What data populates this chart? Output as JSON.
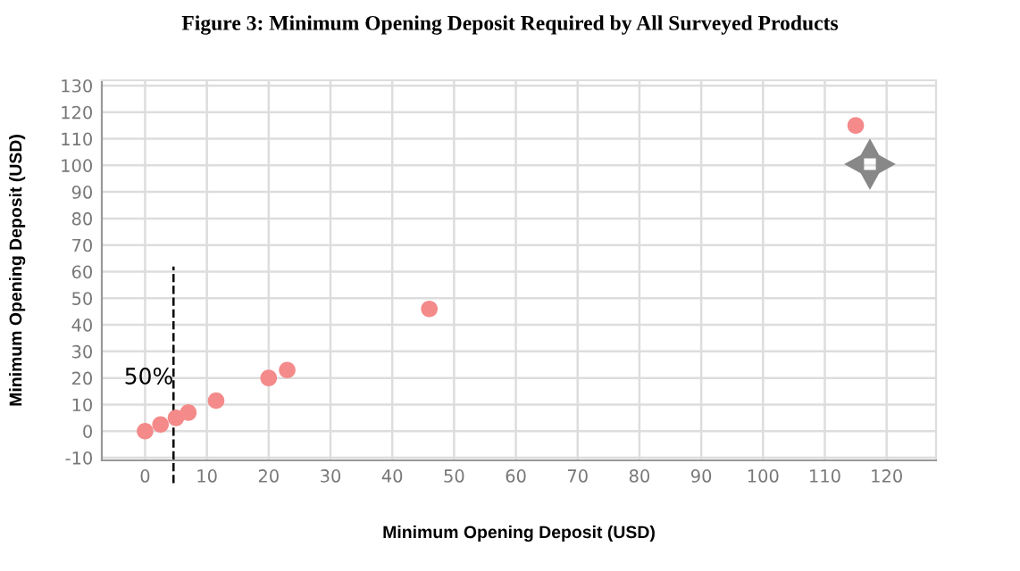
{
  "chart_data": {
    "type": "scatter",
    "title": "Figure 3: Minimum Opening Deposit Required by All Surveyed Products",
    "xlabel": "Minimum Opening Deposit (USD)",
    "ylabel": "Minimum Opening Deposit (USD)",
    "x": [
      0,
      2.5,
      5,
      7,
      11.5,
      20,
      23,
      46,
      115
    ],
    "series": [
      {
        "color": "#f48a8a",
        "values": [
          0,
          2.5,
          5,
          7,
          11.5,
          20,
          23,
          46,
          115
        ]
      }
    ],
    "xlim": [
      -7,
      128
    ],
    "ylim": [
      -11,
      132
    ],
    "xticks": [
      0,
      10,
      20,
      30,
      40,
      50,
      60,
      70,
      80,
      90,
      100,
      110,
      120
    ],
    "yticks": [
      -10,
      0,
      10,
      20,
      30,
      40,
      50,
      60,
      70,
      80,
      90,
      100,
      110,
      120,
      130
    ],
    "ref_lines": [
      {
        "axis": "x",
        "value": 4.6,
        "color": "#000000",
        "line_style": "dashed"
      }
    ],
    "annotations": [
      {
        "text": "50%",
        "x": 4.6,
        "y": 20
      }
    ],
    "grid": true,
    "marker": "circle",
    "legend": false
  }
}
